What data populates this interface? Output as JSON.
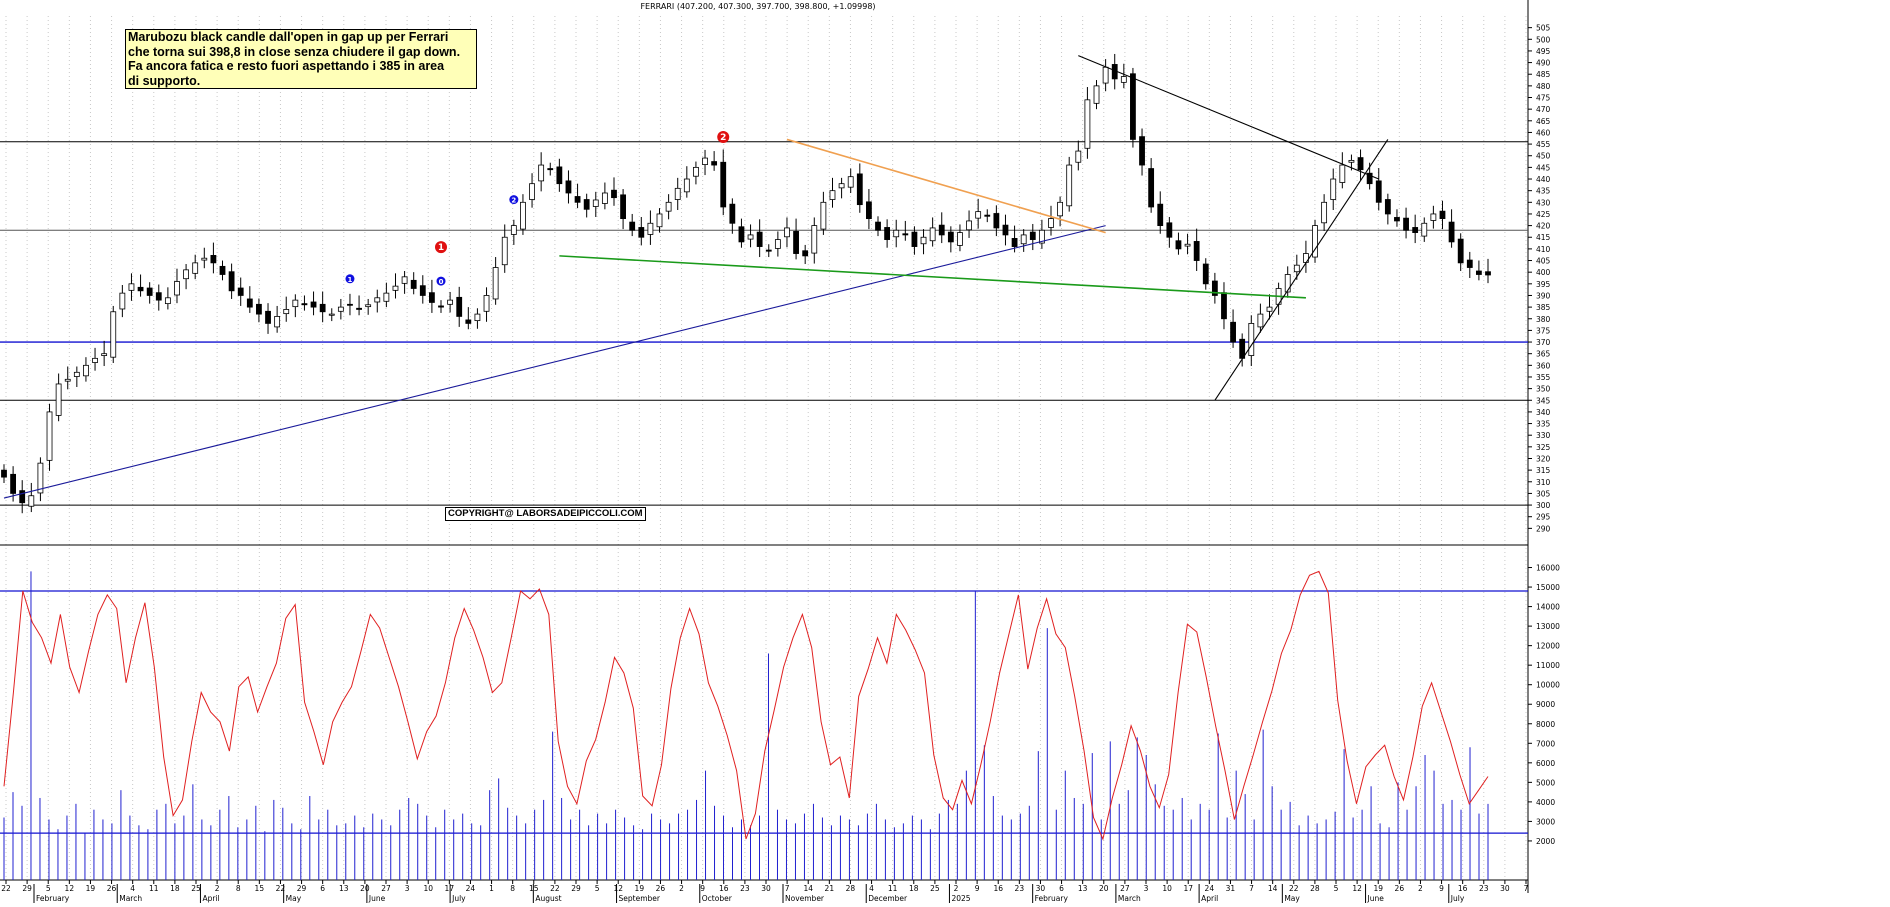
{
  "header": "FERRARI (407.200, 407.300, 397.700, 398.800, +1.09998)",
  "note": "Marubozu black candle dall'open in gap up per Ferrari\nche torna sui 398,8 in close senza chiudere il gap down.\nFa ancora fatica e resto fuori aspettando i 385 in area\ndi supporto.",
  "copyright": "COPYRIGHT@ LABORSADEIPICCOLI.COM",
  "markers": [
    {
      "label": "1",
      "style": "red",
      "date_index": 48
    },
    {
      "label": "2",
      "style": "red",
      "date_index": 79
    },
    {
      "label": "0",
      "style": "blue",
      "date_index": 48
    },
    {
      "label": "1",
      "style": "blue",
      "date_index": 38
    },
    {
      "label": "2",
      "style": "blue",
      "date_index": 56
    }
  ],
  "chart_data": [
    {
      "type": "candlestick",
      "title": "FERRARI (407.200, 407.300, 397.700, 398.800, +1.09998)",
      "ylim": [
        285,
        510
      ],
      "yticks": [
        290,
        295,
        300,
        305,
        310,
        315,
        320,
        325,
        330,
        335,
        340,
        345,
        350,
        355,
        360,
        365,
        370,
        375,
        380,
        385,
        390,
        395,
        400,
        405,
        410,
        415,
        420,
        425,
        430,
        435,
        440,
        445,
        450,
        455,
        460,
        465,
        470,
        475,
        480,
        485,
        490,
        495,
        500,
        505
      ],
      "x_ticks_days": [
        "22",
        "29",
        "5",
        "12",
        "19",
        "26",
        "4",
        "11",
        "18",
        "25",
        "2",
        "8",
        "15",
        "22",
        "29",
        "6",
        "13",
        "20",
        "27",
        "3",
        "10",
        "17",
        "24",
        "1",
        "8",
        "15",
        "22",
        "29",
        "5",
        "12",
        "19",
        "26",
        "2",
        "9",
        "16",
        "23",
        "30",
        "7",
        "14",
        "21",
        "28",
        "4",
        "11",
        "18",
        "25",
        "2",
        "9",
        "16",
        "23",
        "30",
        "6",
        "13",
        "20",
        "27",
        "3",
        "10",
        "17",
        "24",
        "31",
        "7",
        "14",
        "22",
        "28",
        "5",
        "12",
        "19",
        "26",
        "2",
        "9",
        "16",
        "23",
        "30",
        "7"
      ],
      "x_ticks_months": [
        "February",
        "March",
        "April",
        "May",
        "June",
        "July",
        "August",
        "September",
        "October",
        "November",
        "December",
        "2025",
        "February",
        "March",
        "April",
        "May",
        "June",
        "July"
      ],
      "close_series": [
        312,
        305,
        301,
        304,
        318,
        340,
        352,
        354,
        357,
        360,
        363,
        365,
        383,
        391,
        395,
        392,
        390,
        388,
        389,
        396,
        401,
        404,
        406,
        404,
        399,
        392,
        390,
        385,
        382,
        378,
        381,
        384,
        388,
        386,
        385,
        383,
        382,
        385,
        386,
        384,
        386,
        389,
        391,
        394,
        398,
        393,
        390,
        387,
        385,
        388,
        381,
        378,
        382,
        390,
        402,
        415,
        420,
        430,
        438,
        446,
        444,
        438,
        434,
        430,
        427,
        431,
        434,
        432,
        423,
        418,
        415,
        421,
        425,
        430,
        436,
        440,
        445,
        449,
        446,
        428,
        421,
        413,
        416,
        411,
        409,
        414,
        419,
        408,
        407,
        420,
        430,
        435,
        438,
        441,
        429,
        423,
        418,
        414,
        418,
        416,
        411,
        415,
        419,
        416,
        413,
        417,
        422,
        426,
        424,
        419,
        416,
        411,
        416,
        414,
        418,
        423,
        430,
        446,
        452,
        474,
        480,
        488,
        483,
        484,
        457,
        446,
        428,
        420,
        415,
        410,
        412,
        405,
        395,
        390,
        380,
        370,
        363,
        378,
        382,
        385,
        393,
        399,
        403,
        408,
        420,
        430,
        440,
        446,
        448,
        444,
        438,
        430,
        425,
        422,
        418,
        417,
        421,
        425,
        423,
        413,
        404,
        402,
        399,
        398.8
      ],
      "hlines": [
        456,
        418,
        370,
        345,
        300
      ],
      "trendlines": [
        {
          "color": "#1a1a9a",
          "from": [
            0,
            303
          ],
          "to": [
            121,
            420
          ]
        },
        {
          "color": "#f0a050",
          "from": [
            86,
            457
          ],
          "to": [
            121,
            417
          ]
        },
        {
          "color": "#1a9a1a",
          "from": [
            61,
            407
          ],
          "to": [
            143,
            389
          ]
        },
        {
          "color": "#000000",
          "from": [
            118,
            493
          ],
          "to": [
            151,
            440
          ]
        },
        {
          "color": "#000000",
          "from": [
            133,
            345
          ],
          "to": [
            152,
            457
          ]
        }
      ]
    },
    {
      "type": "bar",
      "title": "",
      "ylim": [
        0,
        17000
      ],
      "yticks": [
        2000,
        3000,
        4000,
        5000,
        6000,
        7000,
        8000,
        9000,
        10000,
        11000,
        12000,
        13000,
        14000,
        15000,
        16000
      ],
      "x_ticks_days": [
        "22",
        "29",
        "5",
        "12",
        "19",
        "26",
        "4",
        "11",
        "18",
        "25",
        "2",
        "8",
        "15",
        "22",
        "29",
        "6",
        "13",
        "20",
        "27",
        "3",
        "10",
        "17",
        "24",
        "1",
        "8",
        "15",
        "22",
        "29",
        "5",
        "12",
        "19",
        "26",
        "2",
        "9",
        "16",
        "23",
        "30",
        "7",
        "14",
        "21",
        "28",
        "4",
        "11",
        "18",
        "25",
        "2",
        "9",
        "16",
        "23",
        "30",
        "6",
        "13",
        "20",
        "27",
        "3",
        "10",
        "17",
        "24",
        "31",
        "7",
        "14",
        "22",
        "28",
        "5",
        "12",
        "19",
        "26",
        "2",
        "9",
        "16",
        "23",
        "30",
        "7"
      ],
      "x_ticks_months": [
        "February",
        "March",
        "April",
        "May",
        "June",
        "July",
        "August",
        "September",
        "October",
        "November",
        "December",
        "2025",
        "February",
        "March",
        "April",
        "May",
        "June",
        "July"
      ],
      "hlines": [
        14800,
        2400
      ],
      "volume_series": [
        3200,
        4500,
        3800,
        15800,
        4200,
        3100,
        2600,
        3300,
        3900,
        2400,
        3600,
        3100,
        2900,
        4600,
        3300,
        2800,
        2600,
        3600,
        3900,
        2900,
        3300,
        4900,
        3100,
        2800,
        3600,
        4300,
        2700,
        3100,
        3800,
        2500,
        4100,
        3700,
        2900,
        2600,
        4300,
        3100,
        3600,
        2800,
        2900,
        3300,
        2700,
        3400,
        3100,
        2800,
        3600,
        4200,
        3900,
        3300,
        2700,
        3600,
        3100,
        3400,
        2900,
        2800,
        4600,
        5200,
        3700,
        3300,
        2900,
        3600,
        4100,
        7600,
        4200,
        3100,
        3600,
        2800,
        3400,
        2900,
        3600,
        3200,
        2800,
        2600,
        3400,
        3100,
        2900,
        3400,
        3600,
        4100,
        5600,
        3800,
        3300,
        2700,
        3100,
        2800,
        3300,
        11600,
        3600,
        3100,
        2900,
        3400,
        3900,
        3200,
        2800,
        3300,
        3100,
        2800,
        3400,
        3900,
        3100,
        2700,
        2900,
        3300,
        3100,
        2600,
        3400,
        4100,
        3900,
        5600,
        14800,
        6900,
        4300,
        3300,
        3100,
        3400,
        3800,
        6600,
        12900,
        3600,
        5600,
        4200,
        3900,
        6500,
        3100,
        7100,
        3900,
        4600,
        7300,
        6400,
        4900,
        3800,
        3600,
        4200,
        3100,
        3900,
        3600,
        7500,
        3200,
        5600,
        4400,
        3100,
        7700,
        4800,
        3600,
        4000,
        2800,
        3300,
        2900,
        3100,
        3500,
        6700,
        3200,
        3600,
        4800,
        2900,
        2700,
        5000,
        3600,
        4800,
        6400,
        5600,
        3900,
        4100,
        3600,
        6800,
        3400,
        3900
      ],
      "oscillator_series": [
        4800,
        9600,
        14800,
        13200,
        12400,
        11100,
        13600,
        10900,
        9600,
        11700,
        13600,
        14600,
        13900,
        10100,
        12400,
        14200,
        10900,
        6300,
        3300,
        4100,
        7100,
        9600,
        8600,
        8100,
        6600,
        9900,
        10400,
        8600,
        9900,
        11100,
        13400,
        14100,
        9100,
        7600,
        5900,
        8100,
        9100,
        9900,
        11700,
        13600,
        12900,
        11400,
        9900,
        8100,
        6200,
        7600,
        8400,
        10100,
        12400,
        13900,
        12800,
        11400,
        9600,
        10100,
        12400,
        14800,
        14400,
        14900,
        13600,
        7100,
        4800,
        3900,
        6100,
        7200,
        9100,
        11400,
        10600,
        8800,
        4300,
        3800,
        5900,
        9800,
        12400,
        13900,
        12600,
        10100,
        8900,
        7400,
        5600,
        2100,
        3400,
        6600,
        8700,
        10900,
        12400,
        13600,
        11900,
        8100,
        5900,
        6300,
        4200,
        9400,
        10800,
        12400,
        11100,
        13600,
        12800,
        11800,
        10600,
        6400,
        4200,
        3600,
        5100,
        3900,
        5900,
        8100,
        10600,
        12600,
        14600,
        10800,
        12900,
        14400,
        12600,
        11900,
        9400,
        6600,
        3200,
        2100,
        4200,
        5900,
        7900,
        6600,
        4800,
        3700,
        5400,
        9600,
        13100,
        12700,
        10400,
        7900,
        5600,
        3100,
        4800,
        6400,
        8100,
        9700,
        11600,
        12800,
        14600,
        15600,
        15800,
        14700,
        9200,
        6100,
        3900,
        5800,
        6400,
        6900,
        5300,
        4100,
        6300,
        8900,
        10100,
        8600,
        7100,
        5400,
        3900,
        4600,
        5300
      ]
    }
  ]
}
